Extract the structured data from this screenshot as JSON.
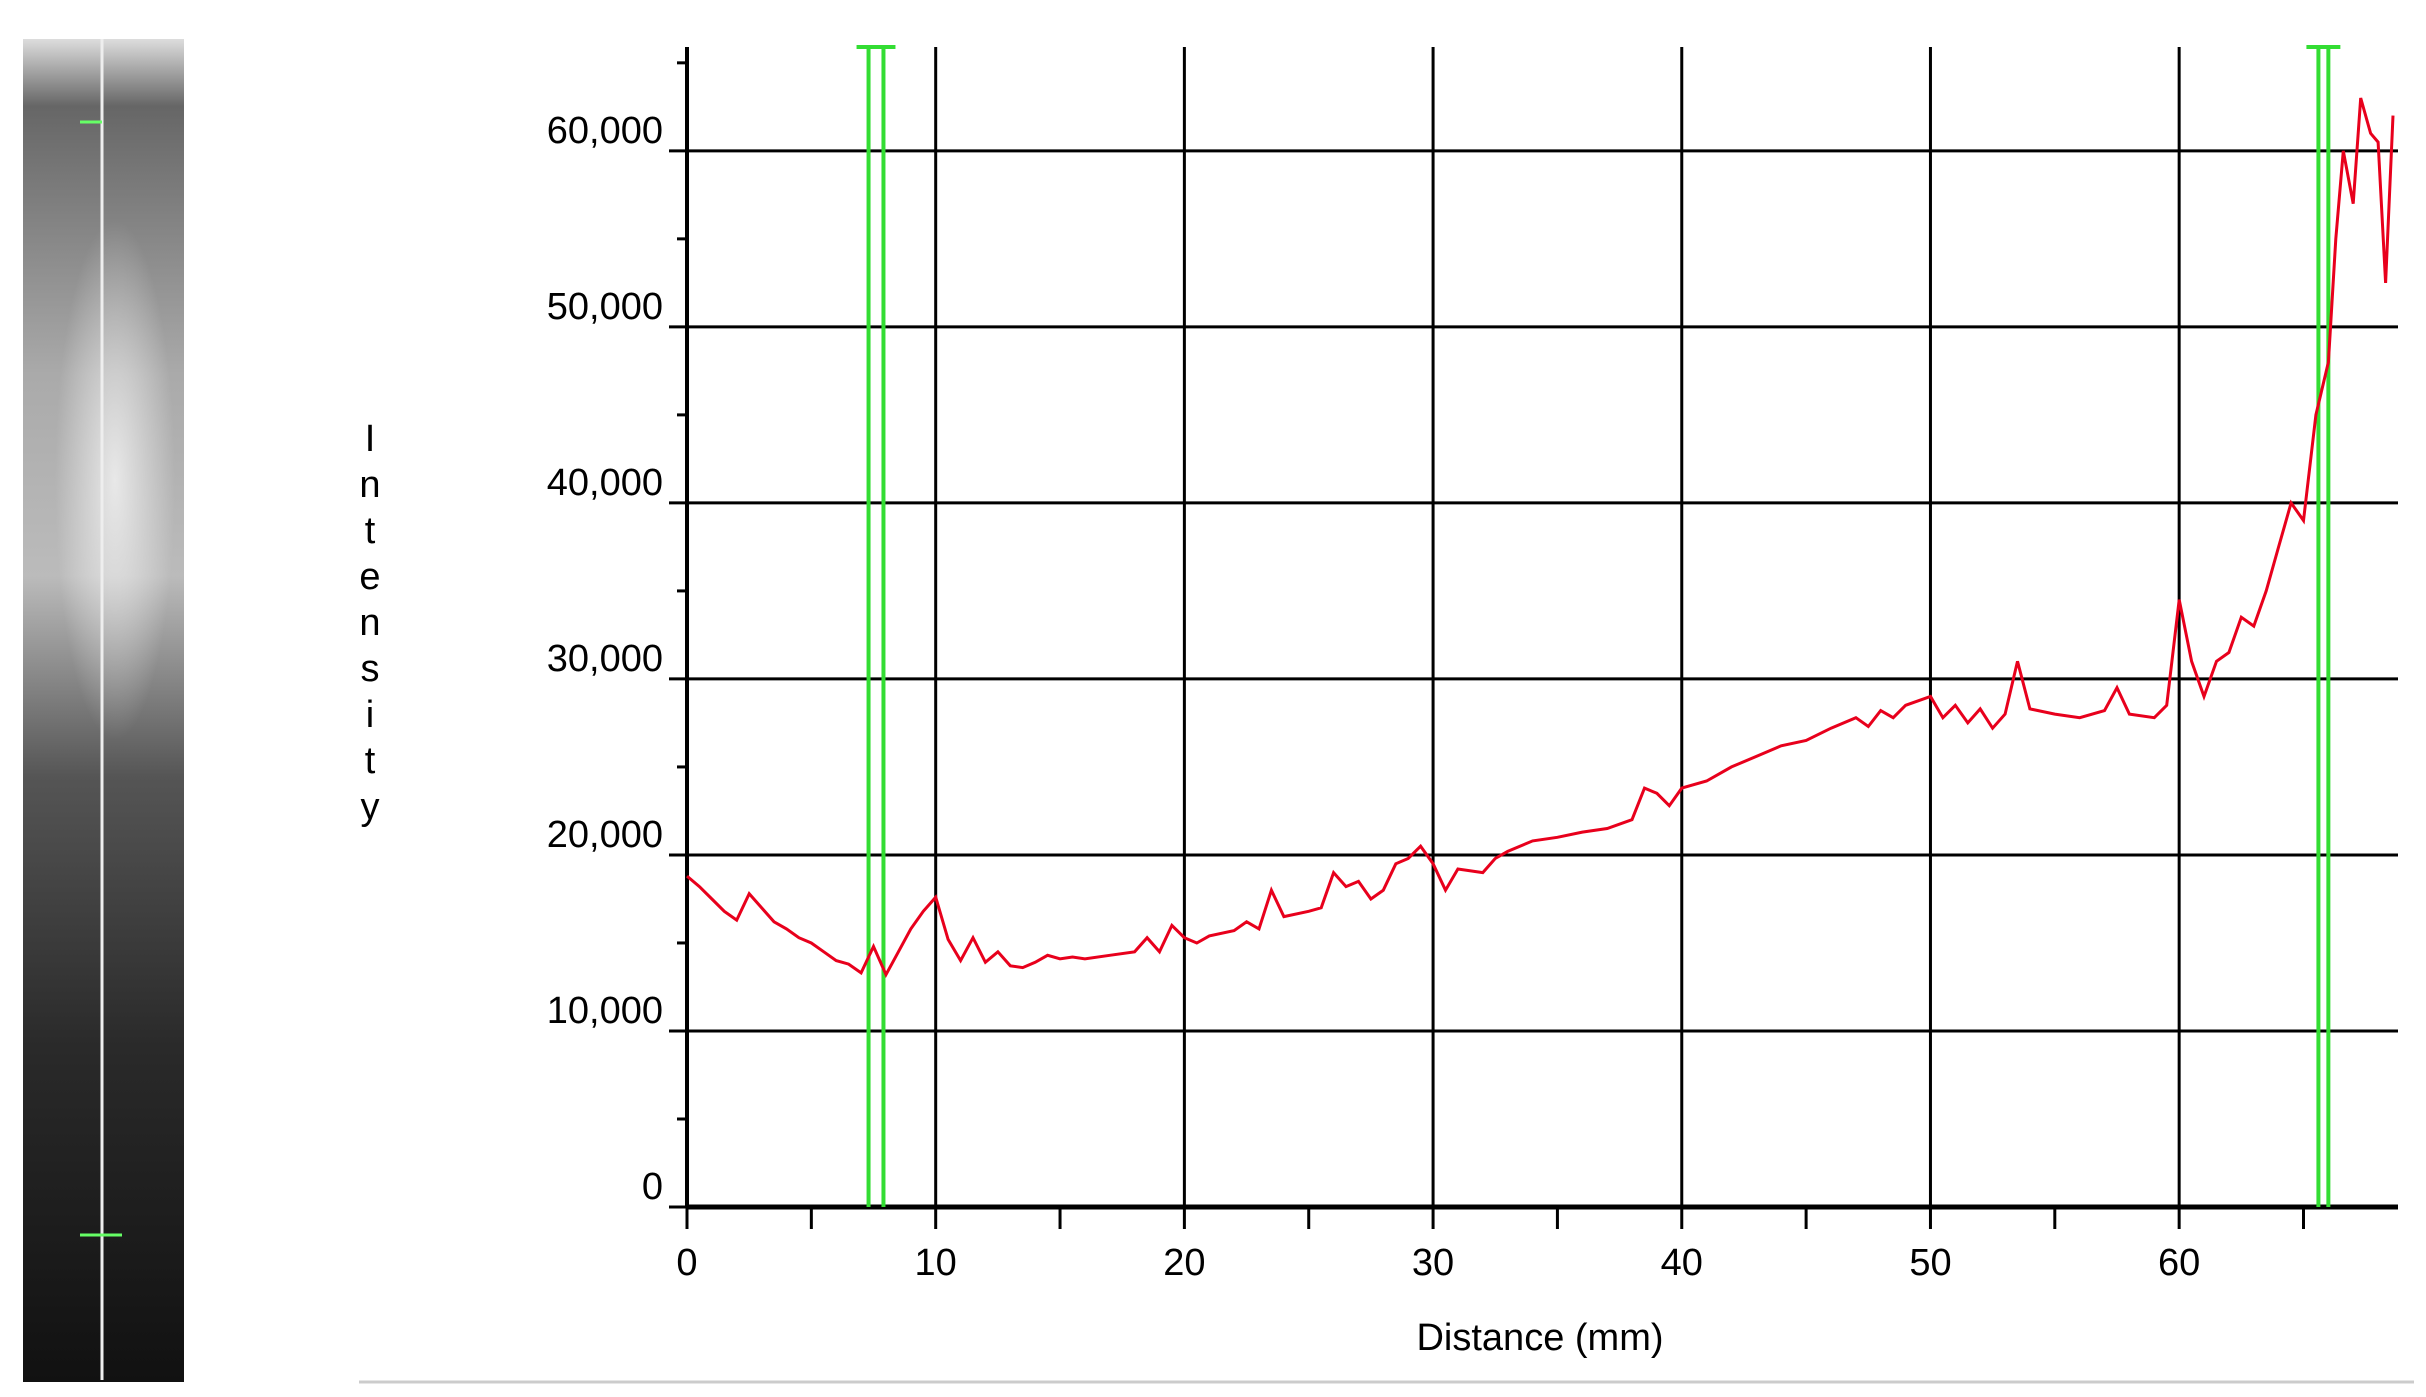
{
  "chart_data": {
    "type": "line",
    "xlabel": "Distance (mm)",
    "ylabel": "Intensity",
    "x": [
      0,
      0.5,
      1,
      1.5,
      2,
      2.5,
      3,
      3.5,
      4,
      4.5,
      5,
      5.5,
      6,
      6.5,
      7,
      7.5,
      8,
      8.5,
      9,
      9.5,
      10,
      10.5,
      11,
      11.5,
      12,
      12.5,
      13,
      13.5,
      14,
      14.5,
      15,
      15.5,
      16,
      17,
      18,
      18.5,
      19,
      19.5,
      20,
      20.5,
      21,
      22,
      22.5,
      23,
      23.5,
      24,
      25,
      25.5,
      26,
      26.5,
      27,
      27.5,
      28,
      28.5,
      29,
      29.5,
      30,
      30.5,
      31,
      32,
      32.5,
      33,
      34,
      35,
      36,
      37,
      38,
      38.5,
      39,
      39.5,
      40,
      41,
      42,
      43,
      44,
      45,
      46,
      47,
      47.5,
      48,
      48.5,
      49,
      50,
      50.5,
      51,
      51.5,
      52,
      52.5,
      53,
      53.5,
      54,
      55,
      56,
      57,
      57.5,
      58,
      59,
      59.5,
      60,
      60.5,
      61,
      61.5,
      62,
      62.5,
      63,
      63.5,
      64,
      64.5,
      65,
      65.5,
      66,
      66.3,
      66.6,
      67,
      67.3,
      67.7,
      68,
      68.3,
      68.6
    ],
    "series": [
      {
        "name": "Intensity",
        "color": "#e8001c",
        "values": [
          18800,
          18200,
          17500,
          16800,
          16300,
          17800,
          17000,
          16200,
          15800,
          15300,
          15000,
          14500,
          14000,
          13800,
          13300,
          14800,
          13200,
          14500,
          15800,
          16800,
          17600,
          15200,
          14000,
          15300,
          13900,
          14500,
          13700,
          13600,
          13900,
          14300,
          14100,
          14200,
          14100,
          14300,
          14500,
          15300,
          14500,
          16000,
          15300,
          15000,
          15400,
          15700,
          16200,
          15800,
          18000,
          16500,
          16800,
          17000,
          19000,
          18200,
          18500,
          17500,
          18000,
          19500,
          19800,
          20500,
          19500,
          18000,
          19200,
          19000,
          19800,
          20200,
          20800,
          21000,
          21300,
          21500,
          22000,
          23800,
          23500,
          22800,
          23800,
          24200,
          25000,
          25600,
          26200,
          26500,
          27200,
          27800,
          27300,
          28200,
          27800,
          28500,
          29000,
          27800,
          28500,
          27500,
          28300,
          27200,
          28000,
          31000,
          28300,
          28000,
          27800,
          28200,
          29500,
          28000,
          27800,
          28500,
          34500,
          31000,
          29000,
          31000,
          31500,
          33500,
          33000,
          35000,
          37500,
          40000,
          39000,
          45000,
          48000,
          55000,
          60000,
          57000,
          63000,
          61000,
          60500,
          52500,
          62000
        ]
      }
    ],
    "markers": [
      7.3,
      7.9,
      65.6,
      66.0
    ],
    "marker_color": "#33dd33",
    "xlim": [
      0,
      68.8
    ],
    "ylim": [
      0,
      65900
    ],
    "xticks": [
      0,
      10,
      20,
      30,
      40,
      50,
      60
    ],
    "xminor": [
      5,
      15,
      25,
      35,
      45,
      55,
      65
    ],
    "yticks": [
      0,
      {
        "value": 10000,
        "label": "10,000"
      },
      {
        "value": 20000,
        "label": "20,000"
      },
      {
        "value": 30000,
        "label": "30,000"
      },
      {
        "value": 40000,
        "label": "40,000"
      },
      {
        "value": 50000,
        "label": "50,000"
      },
      {
        "value": 60000,
        "label": "60,000"
      }
    ],
    "yminor": [
      5000,
      15000,
      25000,
      35000,
      45000,
      55000,
      65000
    ],
    "grid": true
  }
}
